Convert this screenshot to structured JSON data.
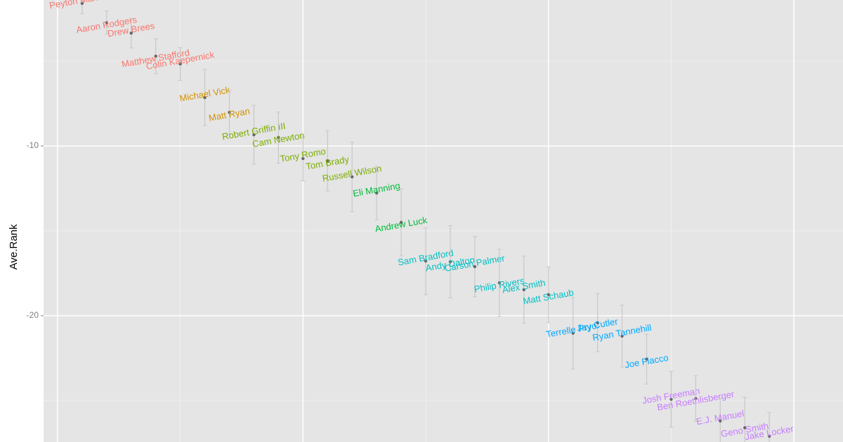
{
  "chart_data": {
    "type": "scatter",
    "y_label": "Ave.Rank",
    "xlim": [
      -0.57,
      32.0
    ],
    "xticks": [
      0,
      10,
      20,
      30
    ],
    "xminor": [
      5,
      15,
      25
    ],
    "ylim": [
      -27.44,
      -1.4
    ],
    "yticks": [
      -10,
      -20
    ],
    "yminor": [
      -5,
      -15,
      -25
    ],
    "grid": true,
    "series": [
      {
        "color": "#F8766D",
        "labels": [
          "Peyton Manning",
          "Aaron Rodgers",
          "Drew Brees",
          "Matthew Stafford",
          "Colin Kaepernick"
        ],
        "x": [
          1,
          2,
          3,
          4,
          5
        ],
        "values": [
          -1.6,
          -2.73,
          -3.35,
          -4.71,
          -5.17
        ],
        "errors": [
          0.6,
          0.68,
          0.87,
          1.03,
          0.97
        ]
      },
      {
        "color": "#D39200",
        "labels": [
          "Michael Vick",
          "Matt Ryan"
        ],
        "x": [
          6,
          7
        ],
        "values": [
          -7.15,
          -8.02
        ],
        "errors": [
          1.65,
          1.3
        ]
      },
      {
        "color": "#7CAE00",
        "labels": [
          "Robert Griffin III",
          "Cam Newton",
          "Tony Romo",
          "Tom Brady",
          "Russell Wilson"
        ],
        "x": [
          8,
          9,
          10,
          11,
          12
        ],
        "values": [
          -9.34,
          -9.5,
          -10.74,
          -10.87,
          -11.82
        ],
        "errors": [
          1.74,
          1.51,
          1.32,
          1.78,
          2.05
        ]
      },
      {
        "color": "#00BA38",
        "labels": [
          "Eli Manning",
          "Andrew Luck"
        ],
        "x": [
          13,
          14
        ],
        "values": [
          -12.77,
          -14.5
        ],
        "errors": [
          1.57,
          1.98
        ]
      },
      {
        "color": "#00BFC4",
        "labels": [
          "Sam Bradford",
          "Andy Dalton",
          "Carson Palmer",
          "Philip Rivers",
          "Alex Smith",
          "Matt Schaub"
        ],
        "x": [
          15,
          16,
          17,
          18,
          19,
          20
        ],
        "values": [
          -16.78,
          -16.82,
          -17.11,
          -18.06,
          -18.47,
          -18.76
        ],
        "errors": [
          1.98,
          2.13,
          1.78,
          1.98,
          1.98,
          1.65
        ]
      },
      {
        "color": "#00A9FF",
        "labels": [
          "Terrelle Pryor",
          "Jay Cutler",
          "Ryan Tannehill",
          "Joe Flacco"
        ],
        "x": [
          21,
          22,
          23,
          24
        ],
        "values": [
          -21.03,
          -20.41,
          -21.2,
          -22.56
        ],
        "errors": [
          2.11,
          1.71,
          1.82,
          1.47
        ]
      },
      {
        "color": "#C77CFF",
        "labels": [
          "Josh Freeman",
          "Ben Roethlisberger",
          "E.J. Manuel",
          "Geno Smith",
          "Jake Locker"
        ],
        "x": [
          25,
          26,
          27,
          28,
          29
        ],
        "values": [
          -24.92,
          -24.88,
          -26.2,
          -26.6,
          -27.1
        ],
        "errors": [
          1.65,
          1.34,
          1.32,
          1.8,
          1.4
        ]
      }
    ]
  }
}
